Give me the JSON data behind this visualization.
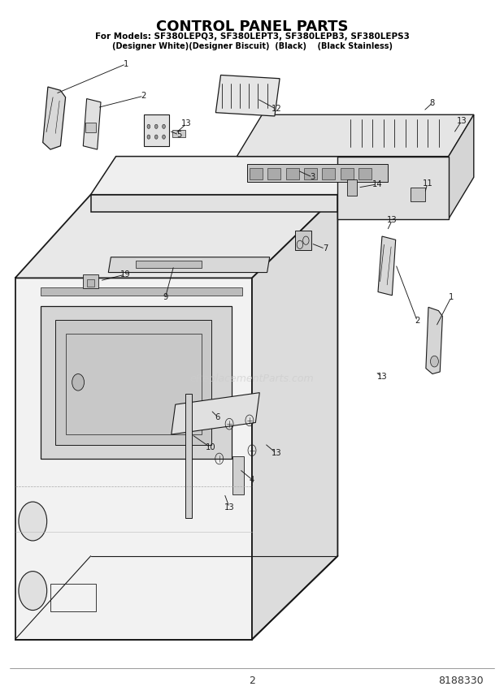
{
  "title": "CONTROL PANEL PARTS",
  "subtitle1": "For Models: SF380LEPQ3, SF380LEPT3, SF380LEPB3, SF380LEPS3",
  "subtitle2": "(Designer White)(Designer Biscuit)  (Black)    (Black Stainless)",
  "page_number": "2",
  "part_number": "8188330",
  "watermark": "eReplacementParts.com",
  "bg_color": "#ffffff",
  "line_color": "#1a1a1a",
  "label_color": "#1a1a1a",
  "title_color": "#000000"
}
